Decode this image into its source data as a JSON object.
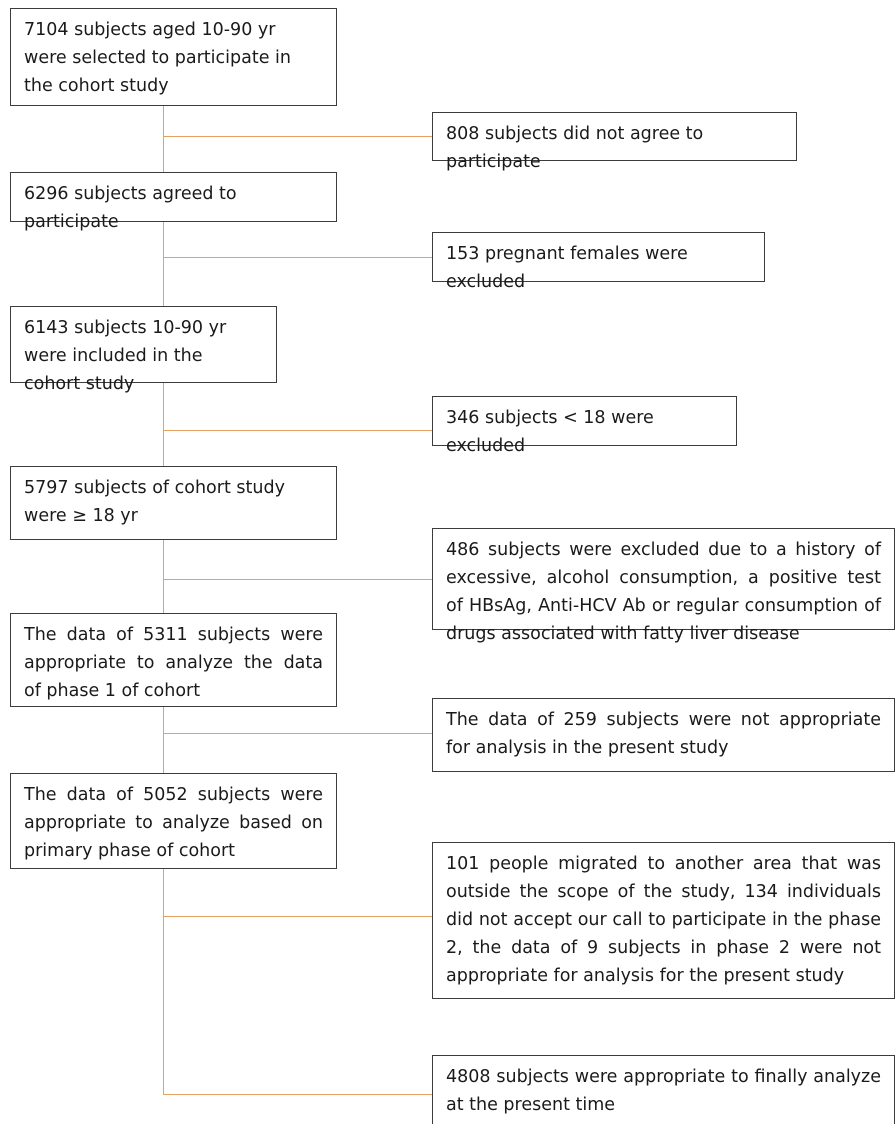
{
  "main_flow": [
    {
      "id": "step-1",
      "text": "7104 subjects aged 10-90 yr were selected to participate in the cohort study"
    },
    {
      "id": "step-2",
      "text": "6296 subjects agreed to participate"
    },
    {
      "id": "step-3",
      "text": "6143 subjects 10-90 yr were included in the cohort study"
    },
    {
      "id": "step-4",
      "text": "5797 subjects of cohort study were ≥ 18 yr"
    },
    {
      "id": "step-5",
      "text": "The data of 5311 subjects were appropriate to analyze the data of phase 1 of cohort"
    },
    {
      "id": "step-6",
      "text": "The data of 5052 subjects were appropriate to analyze based on primary phase of cohort"
    }
  ],
  "side_boxes": [
    {
      "id": "excl-1",
      "text": "808 subjects did not agree to participate"
    },
    {
      "id": "excl-2",
      "text": "153 pregnant females were excluded"
    },
    {
      "id": "excl-3",
      "text": "346 subjects < 18 were excluded"
    },
    {
      "id": "excl-4",
      "text": "486 subjects were excluded due to a history of excessive, alcohol consumption, a positive test of HBsAg, Anti-HCV Ab or regular consumption of drugs associated with fatty liver disease"
    },
    {
      "id": "excl-5",
      "text": "The data of 259 subjects were not appropriate for analysis in the present study"
    },
    {
      "id": "excl-6",
      "text": "101 people migrated to another area that was outside the scope of the study, 134 individuals did not accept our call to participate in the phase 2, the data of 9 subjects in phase 2 were not appropriate for analysis for the present study"
    },
    {
      "id": "final",
      "text": "4808 subjects were appropriate to finally analyze at the present time"
    }
  ],
  "colors": {
    "connector": "#e8a060",
    "box_border": "#3c3c3c"
  }
}
